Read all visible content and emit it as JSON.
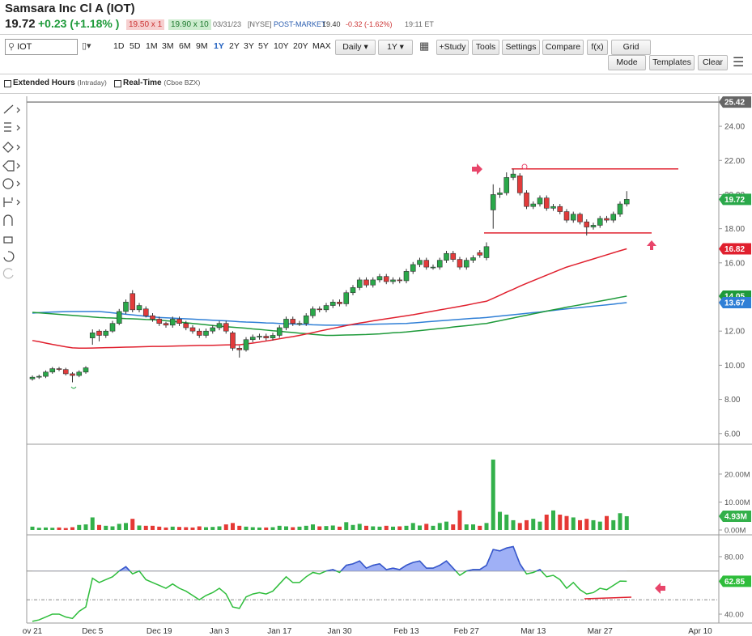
{
  "header": {
    "title": "Samsara Inc Cl A (IOT)",
    "last": "19.72",
    "change": "+0.23 (+1.18% )",
    "bid": "19.50 x 1",
    "ask": "19.90 x 10",
    "date": "03/31/23",
    "exchange": "[NYSE]",
    "session": "POST-MARKET",
    "post_price": "19.40",
    "post_change": "-0.32 (-1.62%)",
    "time": "19:11 ET"
  },
  "toolbar": {
    "symbol": "IOT",
    "ranges": [
      "1D",
      "5D",
      "1M",
      "3M",
      "6M",
      "9M",
      "1Y",
      "2Y",
      "3Y",
      "5Y",
      "10Y",
      "20Y",
      "MAX"
    ],
    "selected_range": "1Y",
    "interval": "Daily",
    "period": "1Y",
    "buttons": [
      "+Study",
      "Tools",
      "Settings",
      "Compare",
      "f(x)",
      "Grid"
    ],
    "buttons_row2": [
      "Mode",
      "Templates",
      "Clear"
    ]
  },
  "options": {
    "extended": "Extended Hours",
    "extended_note": "(Intraday)",
    "realtime": "Real-Time",
    "realtime_note": "(Cboe BZX)"
  },
  "chart_data": [
    {
      "type": "candlestick",
      "colors": {
        "up": "#2aa84a",
        "down": "#e23b3b"
      },
      "categories": [
        "ov 21",
        null,
        null,
        null,
        null,
        null,
        null,
        null,
        null,
        "Dec 5",
        null,
        null,
        null,
        null,
        null,
        null,
        null,
        null,
        null,
        "Dec 19",
        null,
        null,
        null,
        null,
        null,
        null,
        null,
        null,
        "Jan 3",
        null,
        null,
        null,
        null,
        null,
        null,
        null,
        null,
        "Jan 17",
        null,
        null,
        null,
        null,
        null,
        null,
        null,
        null,
        "Jan 30",
        null,
        null,
        null,
        null,
        null,
        null,
        null,
        null,
        null,
        "Feb 13",
        null,
        null,
        null,
        null,
        null,
        null,
        null,
        null,
        "Feb 27",
        null,
        null,
        null,
        null,
        null,
        null,
        null,
        null,
        null,
        "Mar 13",
        null,
        null,
        null,
        null,
        null,
        null,
        null,
        null,
        null,
        "Mar 27",
        null,
        null,
        null,
        null,
        null,
        null,
        null,
        null,
        null,
        null,
        null,
        null,
        null,
        null,
        "Apr 10",
        null,
        null
      ],
      "open": [
        9.2,
        9.3,
        9.35,
        9.6,
        9.8,
        9.75,
        9.5,
        9.4,
        9.6,
        11.6,
        12.0,
        11.75,
        12.0,
        12.45,
        13.15,
        14.2,
        13.25,
        13.3,
        12.9,
        12.7,
        12.45,
        12.35,
        12.7,
        12.45,
        12.2,
        12.0,
        11.75,
        12.0,
        12.2,
        12.45,
        11.9,
        11.0,
        10.9,
        11.5,
        11.65,
        11.7,
        11.6,
        11.75,
        12.2,
        12.7,
        12.45,
        12.45,
        12.9,
        13.3,
        13.25,
        13.5,
        13.7,
        13.6,
        14.25,
        14.55,
        15.0,
        14.7,
        15.0,
        15.2,
        14.9,
        15.0,
        14.95,
        15.5,
        15.9,
        16.15,
        15.75,
        15.75,
        16.15,
        16.55,
        16.2,
        15.75,
        16.15,
        16.6,
        16.3,
        19.1,
        20.0,
        20.1,
        21.0,
        21.1,
        20.1,
        19.3,
        19.45,
        19.8,
        19.2,
        19.3,
        19.0,
        18.5,
        18.85,
        18.4,
        18.1,
        18.2,
        18.6,
        18.5,
        18.85,
        19.45,
        null,
        null,
        null,
        null,
        null,
        null,
        null,
        null,
        null,
        null,
        null,
        null,
        null
      ],
      "high": [
        9.4,
        9.45,
        9.7,
        9.9,
        9.9,
        9.85,
        9.6,
        9.7,
        9.95,
        12.1,
        12.1,
        12.1,
        12.6,
        13.3,
        13.85,
        14.4,
        13.65,
        13.45,
        13.05,
        12.85,
        12.55,
        12.85,
        12.85,
        12.6,
        12.35,
        12.15,
        12.15,
        12.35,
        12.6,
        12.6,
        12.0,
        11.15,
        11.65,
        11.8,
        11.85,
        11.85,
        11.9,
        12.35,
        12.85,
        12.85,
        12.6,
        13.05,
        13.45,
        13.45,
        13.65,
        13.85,
        13.85,
        14.4,
        14.7,
        15.15,
        15.15,
        15.15,
        15.35,
        15.35,
        15.15,
        15.15,
        15.65,
        16.05,
        16.3,
        16.3,
        15.9,
        16.3,
        16.7,
        16.7,
        16.35,
        16.3,
        16.45,
        16.75,
        17.2,
        20.6,
        20.4,
        21.3,
        21.5,
        21.25,
        20.25,
        19.6,
        19.95,
        19.95,
        19.45,
        19.45,
        19.15,
        19.0,
        18.95,
        18.55,
        18.35,
        18.75,
        18.75,
        19.0,
        19.6,
        20.2,
        null,
        null,
        null,
        null,
        null,
        null,
        null,
        null,
        null,
        null,
        null,
        null,
        null
      ],
      "low": [
        9.1,
        9.2,
        9.25,
        9.5,
        9.65,
        9.4,
        9.0,
        9.3,
        9.5,
        11.2,
        11.4,
        11.6,
        11.9,
        12.35,
        13.0,
        13.1,
        13.1,
        12.8,
        12.55,
        12.3,
        12.2,
        12.2,
        12.3,
        12.05,
        11.85,
        11.6,
        11.6,
        11.85,
        12.05,
        11.85,
        10.85,
        10.45,
        10.8,
        11.35,
        11.5,
        11.45,
        11.45,
        11.6,
        12.05,
        12.3,
        12.3,
        12.3,
        12.75,
        13.1,
        13.1,
        13.35,
        13.45,
        13.45,
        14.1,
        14.4,
        14.55,
        14.55,
        14.85,
        14.75,
        14.75,
        14.8,
        14.8,
        15.35,
        15.75,
        15.6,
        15.6,
        15.6,
        16.0,
        16.05,
        15.6,
        15.6,
        16.0,
        16.3,
        16.15,
        18.0,
        19.8,
        19.95,
        20.85,
        19.95,
        19.15,
        19.15,
        19.3,
        19.05,
        19.05,
        18.85,
        18.35,
        18.35,
        18.25,
        17.6,
        17.95,
        18.05,
        18.35,
        18.35,
        18.7,
        19.3,
        null,
        null,
        null,
        null,
        null,
        null,
        null,
        null,
        null,
        null,
        null,
        null,
        null
      ],
      "close": [
        9.3,
        9.35,
        9.6,
        9.8,
        9.75,
        9.5,
        9.4,
        9.6,
        9.85,
        11.9,
        11.75,
        12.0,
        12.45,
        13.15,
        13.7,
        13.25,
        13.5,
        12.9,
        12.7,
        12.45,
        12.35,
        12.7,
        12.45,
        12.2,
        12.0,
        11.75,
        12.0,
        12.2,
        12.45,
        12.0,
        11.0,
        10.9,
        11.5,
        11.65,
        11.7,
        11.6,
        11.75,
        12.2,
        12.7,
        12.45,
        12.45,
        12.9,
        13.3,
        13.25,
        13.5,
        13.7,
        13.6,
        14.25,
        14.55,
        15.0,
        14.7,
        15.0,
        15.2,
        14.9,
        15.0,
        14.95,
        15.5,
        15.9,
        16.15,
        15.75,
        15.75,
        16.15,
        16.55,
        16.2,
        15.75,
        16.15,
        16.3,
        16.45,
        16.95,
        20.0,
        20.1,
        21.0,
        21.2,
        20.1,
        19.3,
        19.45,
        19.8,
        19.2,
        19.3,
        19.0,
        18.5,
        18.85,
        18.4,
        18.1,
        18.2,
        18.6,
        18.5,
        18.85,
        19.45,
        19.72,
        null,
        null,
        null,
        null,
        null,
        null,
        null,
        null,
        null,
        null,
        null,
        null,
        null
      ],
      "series": [
        {
          "color": "#2f7fd6",
          "values": [
            13.05,
            13.08,
            13.1,
            13.12,
            13.13,
            13.14,
            13.15,
            13.15,
            13.15,
            13.15,
            13.15,
            13.11,
            13.07,
            13.03,
            12.99,
            12.95,
            12.91,
            12.87,
            12.84,
            12.8,
            12.78,
            12.76,
            12.74,
            12.72,
            12.7,
            12.68,
            12.66,
            12.64,
            12.62,
            12.6,
            12.58,
            12.55,
            12.53,
            12.52,
            12.5,
            12.48,
            12.47,
            12.45,
            12.43,
            12.42,
            12.4,
            12.39,
            12.37,
            12.36,
            12.35,
            12.35,
            12.35,
            12.36,
            12.37,
            12.38,
            12.39,
            12.4,
            12.41,
            12.42,
            12.43,
            12.44,
            12.45,
            12.48,
            12.51,
            12.54,
            12.57,
            12.6,
            12.63,
            12.66,
            12.69,
            12.72,
            12.75,
            12.77,
            12.8,
            12.84,
            12.88,
            12.92,
            12.96,
            13.0,
            13.04,
            13.08,
            13.12,
            13.17,
            13.21,
            13.26,
            13.3,
            13.34,
            13.38,
            13.42,
            13.46,
            13.5,
            13.54,
            13.58,
            13.63,
            13.67,
            null,
            null,
            null,
            null,
            null,
            null,
            null,
            null,
            null,
            null,
            null,
            null,
            null
          ]
        },
        {
          "color": "#1e9a3a",
          "values": [
            13.1,
            13.07,
            13.04,
            13.01,
            12.98,
            12.95,
            12.92,
            12.89,
            12.86,
            12.83,
            12.8,
            12.78,
            12.77,
            12.75,
            12.73,
            12.72,
            12.7,
            12.68,
            12.67,
            12.65,
            12.61,
            12.57,
            12.53,
            12.49,
            12.45,
            12.41,
            12.37,
            12.33,
            12.29,
            12.26,
            12.23,
            12.2,
            12.17,
            12.13,
            12.1,
            12.06,
            12.02,
            11.99,
            11.95,
            11.92,
            11.88,
            11.85,
            11.81,
            11.78,
            11.75,
            11.75,
            11.76,
            11.77,
            11.78,
            11.79,
            11.8,
            11.82,
            11.84,
            11.87,
            11.9,
            11.92,
            11.95,
            11.99,
            12.03,
            12.07,
            12.11,
            12.15,
            12.19,
            12.24,
            12.28,
            12.32,
            12.36,
            12.41,
            12.45,
            12.53,
            12.61,
            12.69,
            12.77,
            12.85,
            12.93,
            13.01,
            13.09,
            13.17,
            13.25,
            13.32,
            13.4,
            13.47,
            13.54,
            13.61,
            13.69,
            13.76,
            13.83,
            13.9,
            13.98,
            14.05,
            null,
            null,
            null,
            null,
            null,
            null,
            null,
            null,
            null,
            null,
            null,
            null,
            null
          ]
        },
        {
          "color": "#e0202e",
          "values": [
            11.45,
            11.38,
            11.3,
            11.22,
            11.15,
            11.08,
            11.02,
            11.0,
            11.0,
            11.01,
            11.02,
            11.03,
            11.04,
            11.05,
            11.06,
            11.07,
            11.08,
            11.09,
            11.1,
            11.1,
            11.11,
            11.12,
            11.13,
            11.14,
            11.15,
            11.16,
            11.16,
            11.17,
            11.18,
            11.19,
            11.2,
            11.2,
            11.25,
            11.3,
            11.36,
            11.42,
            11.48,
            11.55,
            11.62,
            11.68,
            11.75,
            11.83,
            11.91,
            12.0,
            12.08,
            12.16,
            12.24,
            12.32,
            12.4,
            12.47,
            12.53,
            12.6,
            12.66,
            12.72,
            12.78,
            12.84,
            12.9,
            12.96,
            13.03,
            13.1,
            13.17,
            13.24,
            13.31,
            13.38,
            13.45,
            13.52,
            13.6,
            13.68,
            13.75,
            13.92,
            14.1,
            14.28,
            14.45,
            14.63,
            14.8,
            14.96,
            15.12,
            15.28,
            15.44,
            15.6,
            15.75,
            15.87,
            15.99,
            16.11,
            16.23,
            16.35,
            16.47,
            16.59,
            16.71,
            16.82,
            null,
            null,
            null,
            null,
            null,
            null,
            null,
            null,
            null,
            null,
            null,
            null,
            null
          ]
        }
      ],
      "ylim": [
        5.42,
        25.71
      ],
      "yticks": [
        {
          "value": 24,
          "label": "24.00"
        },
        {
          "value": 22,
          "label": "22.00"
        },
        {
          "value": 20,
          "label": "20.00"
        },
        {
          "value": 18,
          "label": "18.00"
        },
        {
          "value": 16,
          "label": "16.00"
        },
        {
          "value": 12,
          "label": "12.00"
        },
        {
          "value": 10,
          "label": "10.00"
        },
        {
          "value": 8,
          "label": "8.00"
        },
        {
          "value": 6,
          "label": "6.00"
        }
      ],
      "high_marker": 25.42,
      "levels": [
        21.5,
        17.75
      ]
    },
    {
      "type": "bar",
      "colors": {
        "up": "#33b04a",
        "down": "#e53935"
      },
      "values": [
        1.2,
        0.8,
        0.9,
        0.8,
        0.9,
        0.7,
        1.0,
        1.8,
        2.0,
        4.5,
        1.8,
        1.5,
        1.3,
        2.2,
        2.5,
        4.0,
        1.6,
        1.5,
        1.5,
        1.2,
        0.9,
        1.2,
        1.1,
        1.0,
        0.9,
        1.3,
        1.0,
        1.1,
        1.3,
        2.0,
        2.5,
        1.5,
        1.2,
        1.0,
        0.9,
        0.9,
        1.0,
        1.5,
        1.3,
        1.0,
        1.2,
        1.5,
        2.0,
        1.3,
        1.4,
        1.6,
        1.2,
        2.8,
        1.8,
        2.2,
        1.5,
        1.3,
        1.2,
        1.5,
        1.2,
        1.3,
        1.5,
        2.5,
        1.6,
        2.2,
        1.5,
        2.5,
        3.0,
        2.0,
        7.0,
        2.0,
        2.0,
        1.5,
        2.5,
        25.2,
        6.5,
        5.5,
        3.5,
        2.5,
        3.5,
        4.0,
        3.0,
        5.5,
        7.0,
        5.5,
        5.0,
        4.5,
        3.5,
        4.0,
        3.5,
        3.0,
        5.0,
        3.5,
        6.0,
        4.93,
        null,
        null,
        null,
        null,
        null,
        null,
        null,
        null,
        null,
        null,
        null,
        null,
        null
      ],
      "last_value_label": "4.93M",
      "ylim": [
        -1.45,
        30.4
      ],
      "yticks": [
        {
          "value": 20,
          "label": "20.00M"
        },
        {
          "value": 10,
          "label": "10.00M"
        },
        {
          "value": 0,
          "label": "0.00M"
        }
      ]
    },
    {
      "type": "line",
      "color": "#2ebd3b",
      "fill_color": "#9fb0f6",
      "line_color_above": "#3a4fd8",
      "values": [
        35,
        36,
        38,
        40,
        40,
        38,
        37,
        42,
        45,
        65,
        62,
        64,
        66,
        70,
        73,
        68,
        70,
        64,
        62,
        60,
        58,
        61,
        58,
        56,
        53,
        50,
        53,
        55,
        58,
        54,
        45,
        44,
        52,
        54,
        55,
        54,
        56,
        61,
        66,
        62,
        62,
        66,
        69,
        68,
        70,
        71,
        69,
        74,
        75,
        77,
        72,
        74,
        75,
        71,
        72,
        71,
        74,
        76,
        77,
        72,
        72,
        74,
        77,
        72,
        67,
        70,
        71,
        71,
        74,
        85,
        84,
        86,
        87,
        75,
        68,
        69,
        71,
        66,
        67,
        64,
        58,
        62,
        57,
        54,
        55,
        58,
        57,
        60,
        63,
        62.85,
        null,
        null,
        null,
        null,
        null,
        null,
        null,
        null,
        null,
        null,
        null,
        null,
        null
      ],
      "ylim": [
        33.8,
        94.6
      ],
      "yticks": [
        {
          "value": 80,
          "label": "80.00"
        },
        {
          "value": 40,
          "label": "40.00"
        }
      ],
      "levels": [
        70,
        50
      ]
    }
  ]
}
